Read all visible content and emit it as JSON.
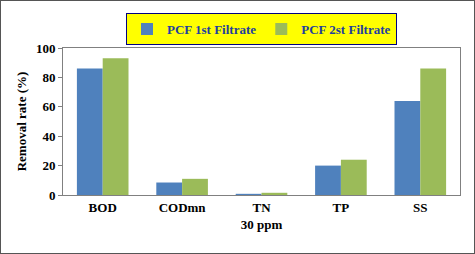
{
  "chart_data": {
    "type": "bar",
    "categories": [
      "BOD",
      "CODmn",
      "TN\n30 ppm",
      "TP",
      "SS"
    ],
    "series": [
      {
        "name": "PCF 1st Filtrate",
        "color": "#4f81bd",
        "values": [
          86,
          8.5,
          0.8,
          20,
          64
        ]
      },
      {
        "name": "PCF 2st Filtrate",
        "color": "#9bbb59",
        "values": [
          93,
          11,
          1.5,
          24,
          86
        ]
      }
    ],
    "y_label": "Removal rate (%)",
    "ylim": [
      0,
      100
    ],
    "yticks": [
      0,
      20,
      40,
      60,
      80,
      100
    ],
    "grid": false,
    "legend": "top"
  }
}
